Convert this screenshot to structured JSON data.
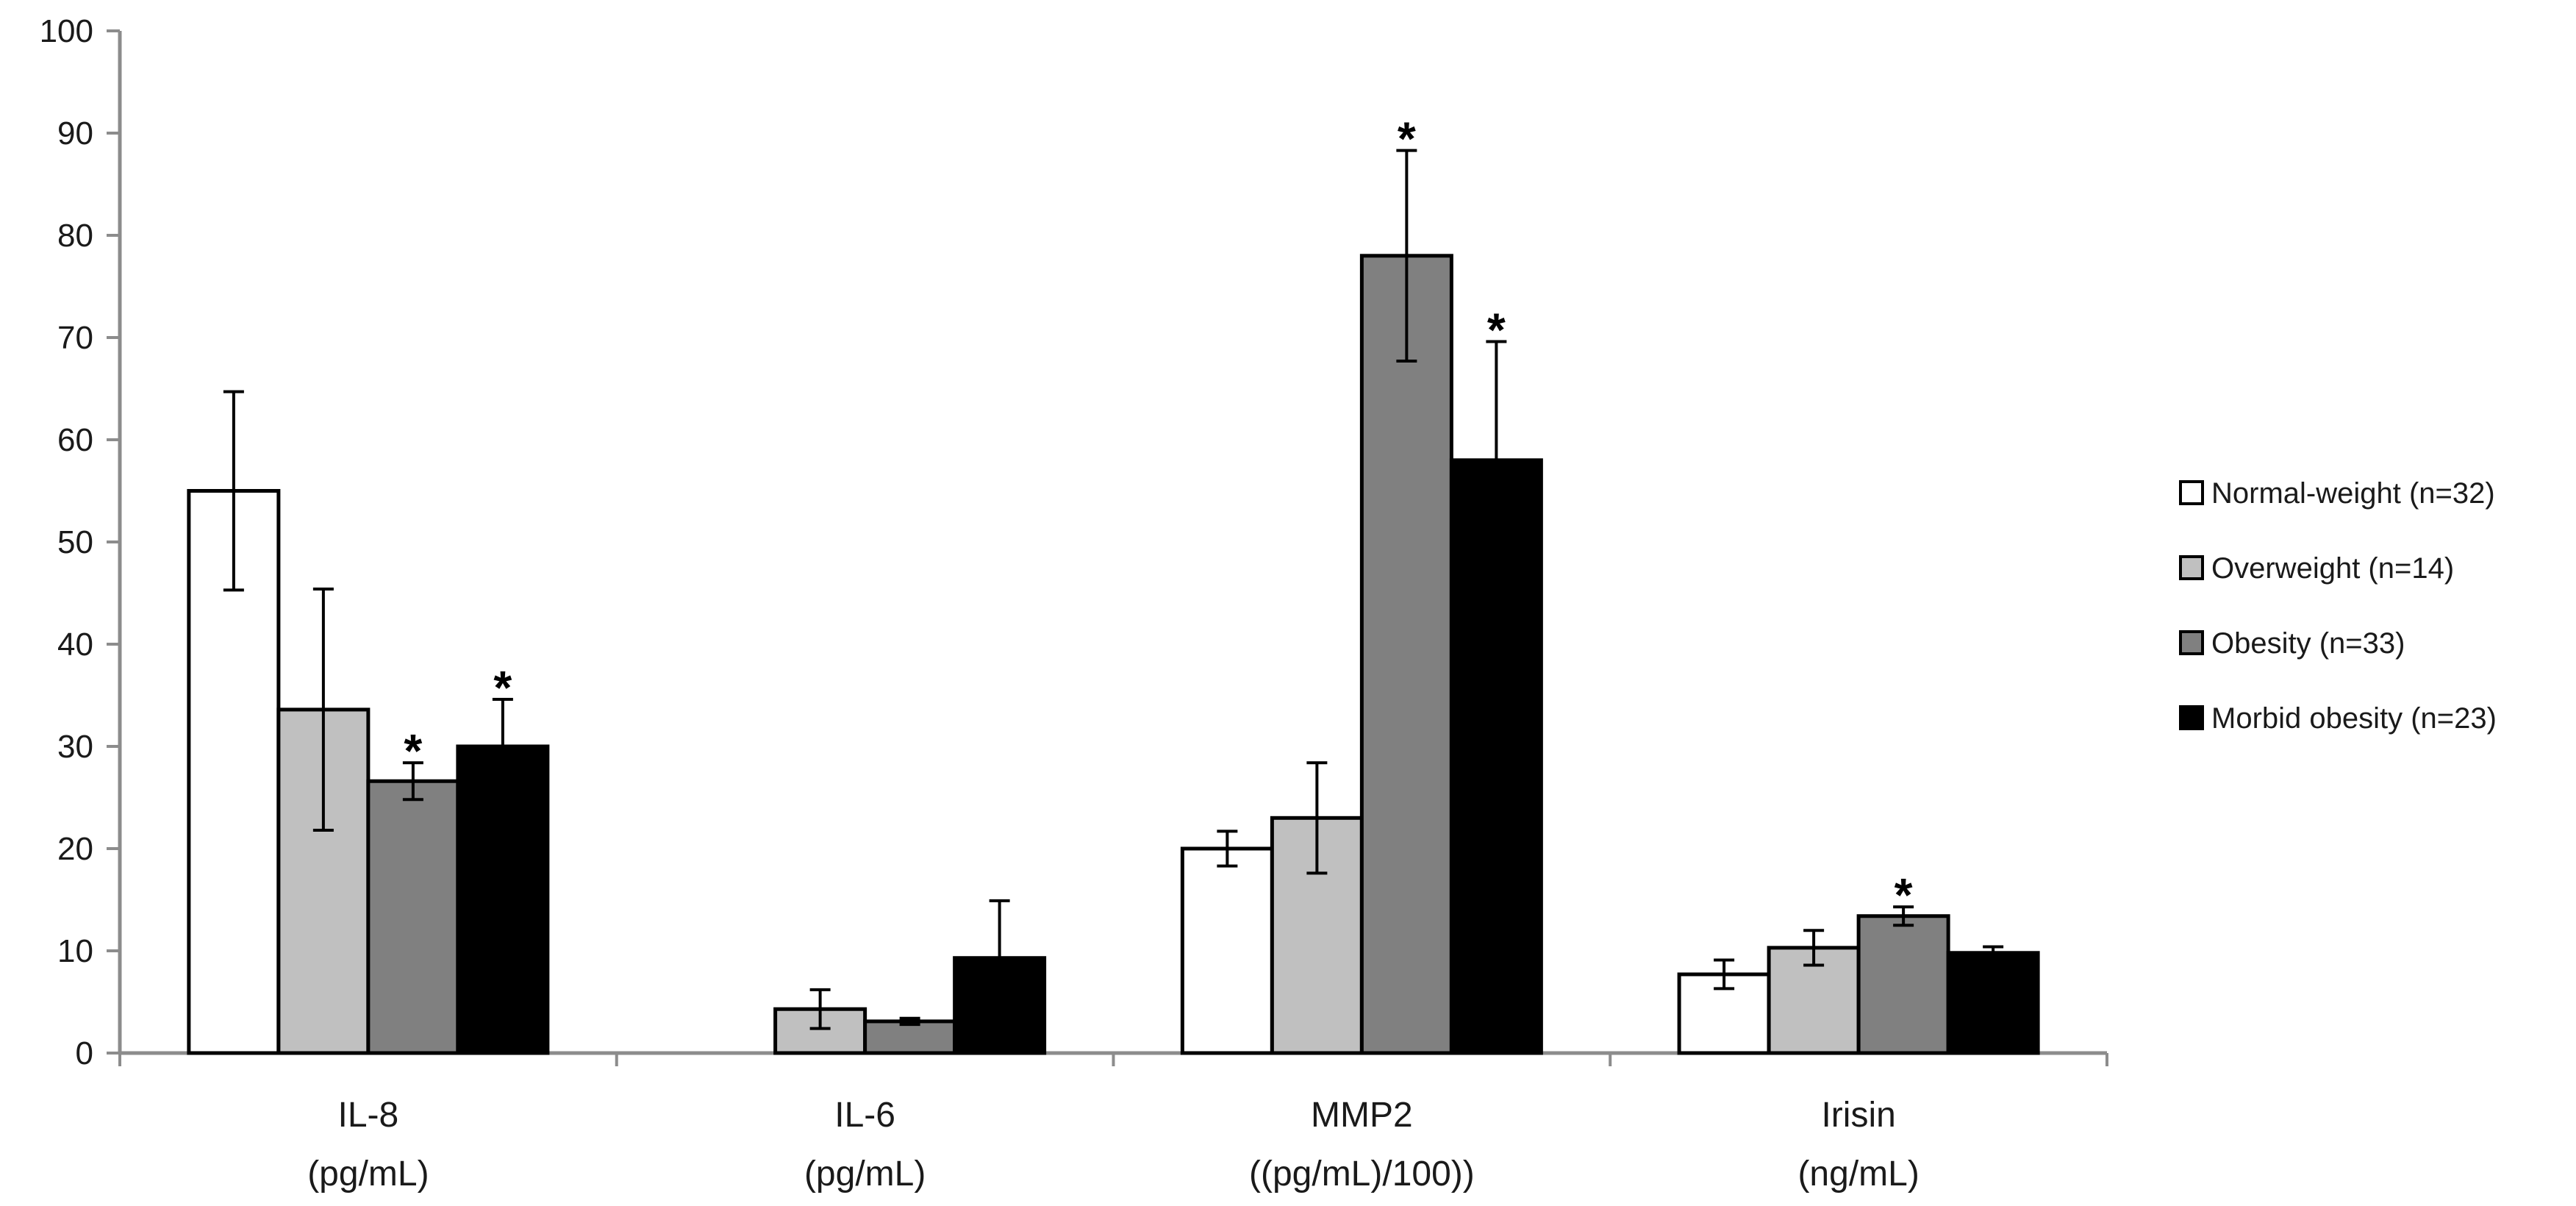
{
  "chart_data": {
    "type": "bar",
    "title": "",
    "xlabel": "",
    "ylabel": "",
    "ylim": [
      0,
      100
    ],
    "yticks": [
      0,
      10,
      20,
      30,
      40,
      50,
      60,
      70,
      80,
      90,
      100
    ],
    "grid": false,
    "legend_position": "right",
    "categories": [
      {
        "name": "IL-8",
        "unit": "(pg/mL)"
      },
      {
        "name": "IL-6",
        "unit": "(pg/mL)"
      },
      {
        "name": "MMP2",
        "unit": "((pg/mL)/100))"
      },
      {
        "name": "Irisin",
        "unit": "(ng/mL)"
      }
    ],
    "series": [
      {
        "name": "Normal-weight (n=32)",
        "color": "#ffffff",
        "values": [
          55,
          0,
          20,
          7.7
        ],
        "errors": [
          9.7,
          0,
          1.7,
          1.4
        ],
        "significant": [
          false,
          false,
          false,
          false
        ]
      },
      {
        "name": "Overweight (n=14)",
        "color": "#c0c0c0",
        "values": [
          33.6,
          4.3,
          23,
          10.3
        ],
        "errors": [
          11.8,
          1.9,
          5.4,
          1.7
        ],
        "significant": [
          false,
          false,
          false,
          false
        ]
      },
      {
        "name": "Obesity (n=33)",
        "color": "#808080",
        "values": [
          26.6,
          3.1,
          78,
          13.4
        ],
        "errors": [
          1.8,
          0.3,
          10.3,
          0.9
        ],
        "significant": [
          true,
          false,
          true,
          true
        ]
      },
      {
        "name": "Morbid obesity (n=23)",
        "color": "#000000",
        "values": [
          30,
          9.3,
          58,
          9.8
        ],
        "errors": [
          4.6,
          5.6,
          11.6,
          0.6
        ],
        "significant": [
          true,
          false,
          true,
          false
        ]
      }
    ],
    "significance_marker": "*"
  }
}
